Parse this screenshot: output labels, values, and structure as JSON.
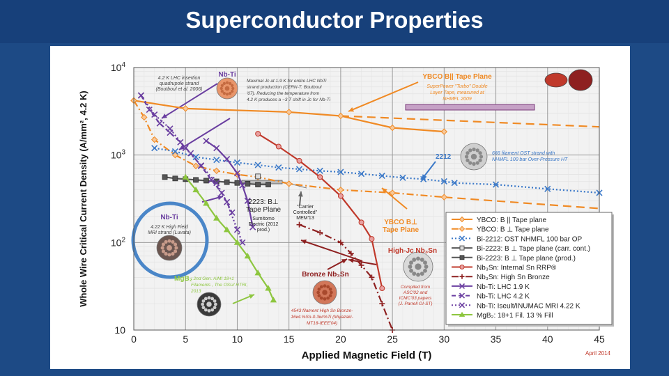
{
  "page": {
    "title": "Superconductor Properties"
  },
  "colors": {
    "ybco": "#f08a24",
    "bi2212": "#3a78c8",
    "bi2223": "#555555",
    "nb3sn_rrp": "#c0392b",
    "nb3sn_bronze": "#8e2020",
    "nbti": "#6a3ea0",
    "mgb2": "#8dc63f",
    "highlight_circle": "#4a86c8",
    "background": "#1d4a85"
  },
  "chart_data": {
    "type": "line",
    "title": "",
    "xlabel": "Applied Magnetic Field (T)",
    "ylabel": "Whole Wire Critical Current Density (A/mm², 4.2 K)",
    "xlim": [
      0,
      45
    ],
    "ylim": [
      10,
      10000
    ],
    "yscale": "log",
    "x_ticks": [
      "0",
      "5",
      "10",
      "15",
      "20",
      "25",
      "30",
      "35",
      "40",
      "45"
    ],
    "y_ticks": [
      {
        "base": "10",
        "exp": ""
      },
      {
        "base": "10",
        "exp": "2"
      },
      {
        "base": "10",
        "exp": "3"
      },
      {
        "base": "10",
        "exp": "4"
      }
    ],
    "grid": true,
    "legend_position": "right",
    "date_note": "April 2014",
    "series": [
      {
        "name": "YBCO: B || Tape plane",
        "color": "#f08a24",
        "marker": "diamond",
        "dash": "solid",
        "extrap_dash": "12,7",
        "points": [
          [
            0,
            4200
          ],
          [
            5,
            3400
          ],
          [
            15,
            3100
          ],
          [
            20,
            2800
          ],
          [
            25,
            2050
          ],
          [
            30,
            1850
          ]
        ],
        "extrap": [
          [
            20,
            2800
          ],
          [
            45,
            2100
          ]
        ]
      },
      {
        "name": "YBCO: B ⊥ Tape plane",
        "color": "#f08a24",
        "marker": "diamond",
        "dash": "10,4,2,4",
        "extrap_dash": "12,7",
        "points": [
          [
            0,
            4200
          ],
          [
            1,
            2700
          ],
          [
            2,
            1500
          ],
          [
            4,
            1000
          ],
          [
            6,
            750
          ],
          [
            8,
            660
          ],
          [
            10,
            600
          ],
          [
            12,
            560
          ],
          [
            15,
            470
          ],
          [
            20,
            400
          ],
          [
            25,
            370
          ],
          [
            30,
            330
          ]
        ],
        "extrap": [
          [
            30,
            330
          ],
          [
            45,
            245
          ]
        ]
      },
      {
        "name": "Bi-2212: OST NHMFL 100 bar OP",
        "color": "#3a78c8",
        "marker": "x",
        "dash": "2,3",
        "points": [
          [
            2,
            1200
          ],
          [
            4,
            1100
          ],
          [
            6,
            950
          ],
          [
            8,
            880
          ],
          [
            10,
            820
          ],
          [
            12,
            770
          ],
          [
            14,
            720
          ],
          [
            16,
            690
          ],
          [
            18,
            660
          ],
          [
            20,
            640
          ],
          [
            22,
            610
          ],
          [
            24,
            580
          ],
          [
            26,
            550
          ],
          [
            28,
            530
          ],
          [
            30,
            500
          ],
          [
            31,
            480
          ],
          [
            35,
            460
          ],
          [
            40,
            410
          ],
          [
            45,
            370
          ]
        ]
      },
      {
        "name": "Bi-2223: B ⊥ Tape plane (carr. cont.)",
        "color": "#555555",
        "marker": "square-open",
        "dash": "solid",
        "points": [
          [
            12,
            570
          ]
        ]
      },
      {
        "name": "Bi-2223: B ⊥ Tape plane (prod.)",
        "color": "#555555",
        "marker": "square",
        "dash": "solid",
        "points": [
          [
            3,
            560
          ],
          [
            4,
            540
          ],
          [
            5,
            530
          ],
          [
            6,
            520
          ],
          [
            7,
            510
          ],
          [
            8,
            500
          ],
          [
            9,
            490
          ],
          [
            10,
            480
          ],
          [
            11,
            470
          ],
          [
            12,
            460
          ],
          [
            13,
            460
          ]
        ]
      },
      {
        "name": "Nb₃Sn: Internal Sn RRP®",
        "color": "#c0392b",
        "marker": "circle",
        "dash": "solid",
        "points": [
          [
            12,
            1750
          ],
          [
            14,
            1250
          ],
          [
            16,
            860
          ],
          [
            18,
            560
          ],
          [
            20,
            340
          ],
          [
            22,
            170
          ],
          [
            23,
            110
          ],
          [
            24,
            30
          ]
        ]
      },
      {
        "name": "Nb₃Sn: High Sn Bronze",
        "color": "#8e2020",
        "marker": "plus",
        "dash": "10,4,2,4",
        "points": [
          [
            16,
            160
          ],
          [
            18,
            130
          ],
          [
            20,
            100
          ],
          [
            21,
            75
          ],
          [
            22,
            55
          ],
          [
            23,
            40
          ],
          [
            24,
            20
          ],
          [
            25,
            10
          ]
        ]
      },
      {
        "name": "Nb-Ti: LHC 1.9 K",
        "color": "#6a3ea0",
        "marker": "x",
        "dash": "solid",
        "points": [
          [
            7,
            1450
          ],
          [
            8,
            1200
          ],
          [
            9,
            900
          ],
          [
            10,
            620
          ],
          [
            10.5,
            450
          ],
          [
            11,
            300
          ],
          [
            11.5,
            150
          ]
        ]
      },
      {
        "name": "Nb-Ti: LHC 4.2 K",
        "color": "#6a3ea0",
        "marker": "x",
        "dash": "6,4",
        "points": [
          [
            0.7,
            4800
          ],
          [
            1.5,
            3300
          ],
          [
            2.5,
            2300
          ],
          [
            3.5,
            1800
          ],
          [
            4.5,
            1400
          ],
          [
            5.5,
            1050
          ],
          [
            6.5,
            750
          ],
          [
            7.5,
            520
          ],
          [
            8.5,
            370
          ],
          [
            9.5,
            220
          ]
        ]
      },
      {
        "name": "Nb-Ti: Iseult/INUMAC MRI 4.22 K",
        "color": "#6a3ea0",
        "marker": "x",
        "dash": "2,3",
        "points": [
          [
            0.7,
            4800
          ],
          [
            2,
            2900
          ],
          [
            3.5,
            2000
          ],
          [
            5,
            1200
          ],
          [
            6.5,
            760
          ],
          [
            8,
            480
          ],
          [
            9,
            290
          ],
          [
            10,
            140
          ],
          [
            10.5,
            100
          ]
        ]
      },
      {
        "name": "MgB₂: 18+1 Fil. 13 % Fill",
        "color": "#8dc63f",
        "marker": "triangle",
        "dash": "solid",
        "points": [
          [
            5,
            560
          ],
          [
            6,
            400
          ],
          [
            7,
            280
          ],
          [
            8,
            190
          ],
          [
            9,
            140
          ],
          [
            10,
            100
          ],
          [
            11,
            70
          ],
          [
            12,
            45
          ],
          [
            13,
            30
          ],
          [
            13.5,
            22
          ]
        ]
      }
    ],
    "annotations": {
      "nbti_head": "Nb-Ti",
      "lhc_text": [
        "4.2 K LHC insertion",
        "quadrupole strand",
        "(Boutboul et al. 2006)"
      ],
      "max_jc_text": [
        "Maximal Jc at 1.9 K for entire LHC NbTi",
        "strand production (CERN-T. Boutboul",
        "'07). Reducing the temperature from",
        "4.2 K produces a ~3 T shift in Jc for Nb-Ti"
      ],
      "ybco_head": "YBCO B|| Tape Plane",
      "ybco_text": [
        "SuperPower \"Turbo\" Double",
        "Layer Tape, measured at",
        "NHMFL 2009"
      ],
      "label_2212": "2212",
      "text_2212": [
        "666 filament OST strand with",
        "NHMFL 100 bar Over-Pressure HT"
      ],
      "bi2223_head": [
        "2223: B⊥",
        "Tape Plane"
      ],
      "bi2223_text": [
        "Sumitomo",
        "Electric (2012",
        "prod.)"
      ],
      "carrier_text": [
        "\"Carrier",
        "Controlled\"",
        "MEM'13"
      ],
      "ybco_perp_head": [
        "YBCO B⊥",
        "Tape Plane"
      ],
      "nbti_mri_head": "Nb-Ti",
      "nbti_mri_text": [
        "4.22 K High Field",
        "MRI strand (Luvata)"
      ],
      "mgb2_head": "MgB₂",
      "mgb2_text": [
        ": 2nd Gen. AIMI 18+1",
        "Filaments , The OSU/ HTRI,",
        "2013"
      ],
      "bronze_head": "Bronze Nb₃Sn",
      "bronze_text": [
        "4543 filament High Sn Bronze-",
        "16wt.%Sn-0.3wt%Ti (Miyazaki-",
        "MT18-IEEE'04)"
      ],
      "highj_head": "High-Jc Nb₃Sn",
      "compiled_text": [
        "Compiled from",
        "ASC'02 and",
        "ICMC'03 papers",
        "(J. Parrell OI-ST)"
      ]
    }
  }
}
